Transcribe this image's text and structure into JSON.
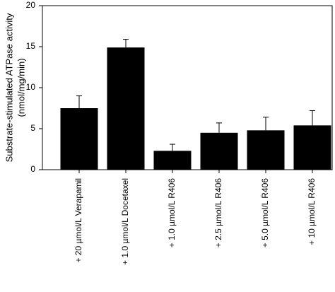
{
  "chart_data": {
    "type": "bar",
    "ylabel": [
      "Substrate-stimulated ATPase activity",
      "(nmol/mg/min)"
    ],
    "categories": [
      "+ 20 µmol/L Verapamil",
      "+ 1.0 µmol/L Docetaxel",
      "+ 1.0 µmol/L R406",
      "+ 2.5 µmol/L R406",
      "+ 5.0 µmol/L R406",
      "+ 10 µmol/L R406"
    ],
    "values": [
      7.5,
      14.9,
      2.3,
      4.5,
      4.8,
      5.4
    ],
    "errors": [
      1.5,
      1.0,
      0.8,
      1.2,
      1.6,
      1.8
    ],
    "color": "#000000",
    "ylim": [
      0,
      20
    ],
    "yticks": [
      0,
      5,
      10,
      15,
      20
    ]
  }
}
